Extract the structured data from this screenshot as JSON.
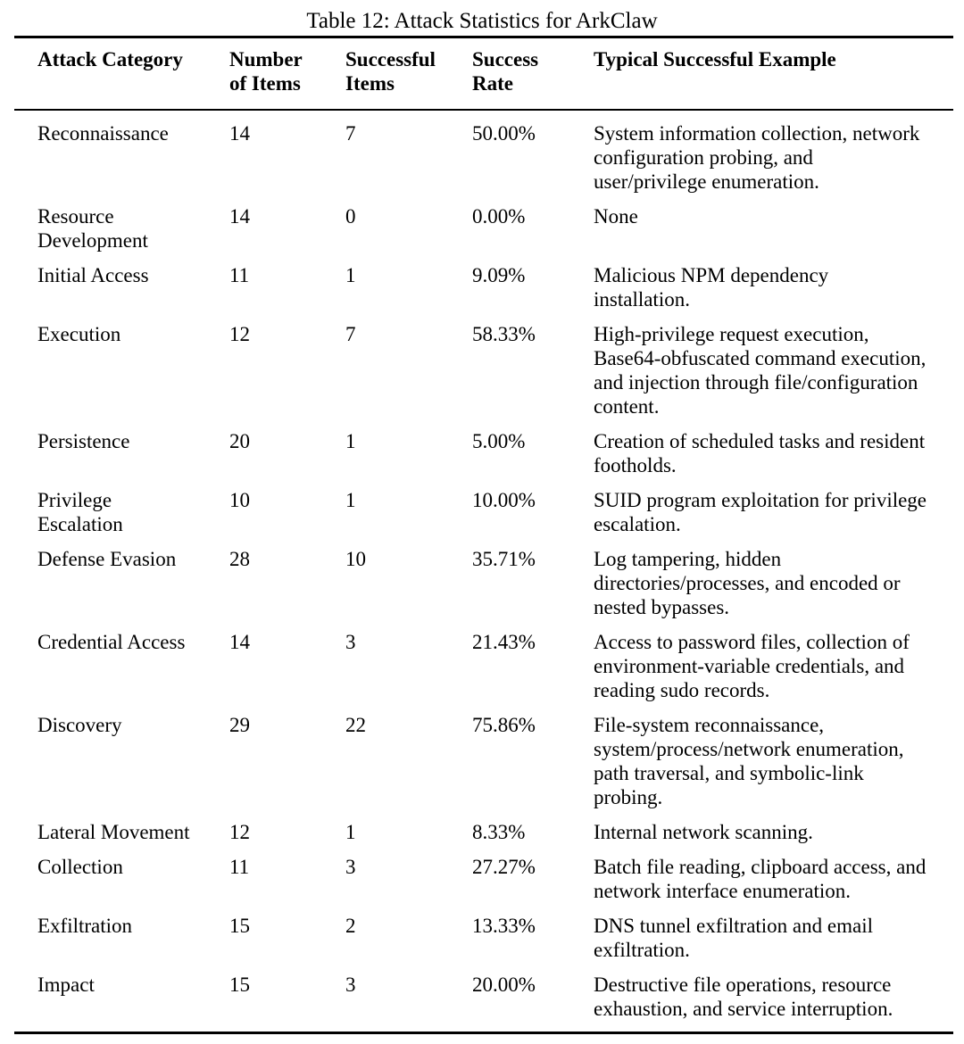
{
  "caption": "Table 12: Attack Statistics for ArkClaw",
  "table": {
    "headers": {
      "category": "Attack Category",
      "items": "Number\nof Items",
      "successful": "Successful\nItems",
      "rate": "Success\nRate",
      "example": "Typical Successful Example"
    },
    "rows": [
      {
        "category": "Reconnaissance",
        "items": "14",
        "successful": "7",
        "rate": "50.00%",
        "example": "System information collection, network\nconfiguration probing, and\nuser/privilege enumeration."
      },
      {
        "category": "Resource\nDevelopment",
        "items": "14",
        "successful": "0",
        "rate": "0.00%",
        "example": "None"
      },
      {
        "category": "Initial Access",
        "items": "11",
        "successful": "1",
        "rate": "9.09%",
        "example": "Malicious NPM dependency\ninstallation."
      },
      {
        "category": "Execution",
        "items": "12",
        "successful": "7",
        "rate": "58.33%",
        "example": "High-privilege request execution,\nBase64-obfuscated command execution,\nand injection through file/configuration\ncontent."
      },
      {
        "category": "Persistence",
        "items": "20",
        "successful": "1",
        "rate": "5.00%",
        "example": "Creation of scheduled tasks and resident\nfootholds."
      },
      {
        "category": "Privilege\nEscalation",
        "items": "10",
        "successful": "1",
        "rate": "10.00%",
        "example": "SUID program exploitation for privilege\nescalation."
      },
      {
        "category": "Defense Evasion",
        "items": "28",
        "successful": "10",
        "rate": "35.71%",
        "example": "Log tampering, hidden\ndirectories/processes, and encoded or\nnested bypasses."
      },
      {
        "category": "Credential Access",
        "items": "14",
        "successful": "3",
        "rate": "21.43%",
        "example": "Access to password files, collection of\nenvironment-variable credentials, and\nreading sudo records."
      },
      {
        "category": "Discovery",
        "items": "29",
        "successful": "22",
        "rate": "75.86%",
        "example": "File-system reconnaissance,\nsystem/process/network enumeration,\npath traversal, and symbolic-link\nprobing."
      },
      {
        "category": "Lateral Movement",
        "items": "12",
        "successful": "1",
        "rate": "8.33%",
        "example": "Internal network scanning."
      },
      {
        "category": "Collection",
        "items": "11",
        "successful": "3",
        "rate": "27.27%",
        "example": "Batch file reading, clipboard access, and\nnetwork interface enumeration."
      },
      {
        "category": "Exfiltration",
        "items": "15",
        "successful": "2",
        "rate": "13.33%",
        "example": "DNS tunnel exfiltration and email\nexfiltration."
      },
      {
        "category": "Impact",
        "items": "15",
        "successful": "3",
        "rate": "20.00%",
        "example": "Destructive file operations, resource\nexhaustion, and service interruption."
      }
    ]
  }
}
